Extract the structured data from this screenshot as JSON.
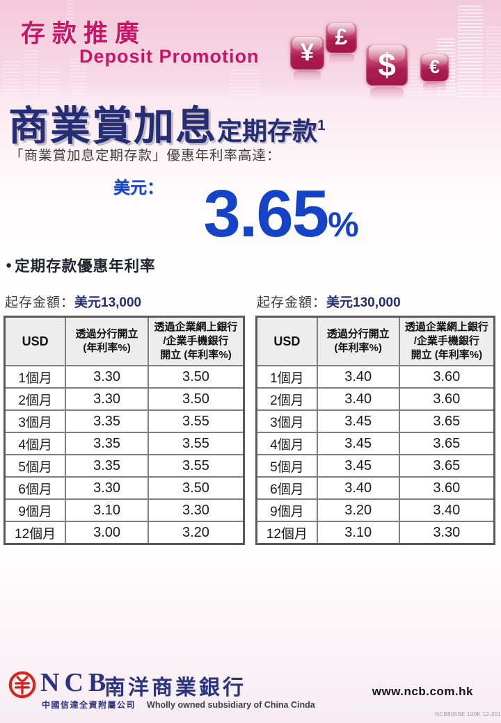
{
  "colors": {
    "magenta": "#cb1464",
    "navy": "#252e73",
    "blue": "#1443c8",
    "text-dark": "#3d3d3d",
    "bullet-dark": "#20242e",
    "table-border": "#7f7f7f",
    "table-border-outer": "#595959",
    "table-header-bg": "#ededed",
    "logo-red": "#d8251f",
    "logo-navy": "#2c3480"
  },
  "header": {
    "title_zh": "存款推廣",
    "title_en": "Deposit Promotion",
    "currency_icons": [
      {
        "name": "yen",
        "symbol": "¥"
      },
      {
        "name": "pound",
        "symbol": "£"
      },
      {
        "name": "dollar",
        "symbol": "$"
      },
      {
        "name": "euro",
        "symbol": "€"
      }
    ]
  },
  "promo": {
    "product_title": "商業賞加息",
    "product_subtitle": "定期存款",
    "footnote_marker": "1",
    "tagline": "「商業賞加息定期存款」優惠年利率高達：",
    "currency_label": "美元：",
    "headline_rate": "3.65",
    "headline_rate_unit": "%",
    "section_bullet": "●",
    "section_title": "定期存款優惠年利率"
  },
  "tables": [
    {
      "caption_prefix": "起存金額：",
      "caption_amount": "美元13,000",
      "headers": [
        "USD",
        "透過分行開立\n(年利率%)",
        "透過企業網上銀行\n/企業手機銀行\n開立 (年利率%)"
      ],
      "rows": [
        [
          "1個月",
          "3.30",
          "3.50"
        ],
        [
          "2個月",
          "3.30",
          "3.50"
        ],
        [
          "3個月",
          "3.35",
          "3.55"
        ],
        [
          "4個月",
          "3.35",
          "3.55"
        ],
        [
          "5個月",
          "3.35",
          "3.55"
        ],
        [
          "6個月",
          "3.30",
          "3.50"
        ],
        [
          "9個月",
          "3.10",
          "3.30"
        ],
        [
          "12個月",
          "3.00",
          "3.20"
        ]
      ]
    },
    {
      "caption_prefix": "起存金額：",
      "caption_amount": "美元130,000",
      "headers": [
        "USD",
        "透過分行開立\n(年利率%)",
        "透過企業網上銀行\n/企業手機銀行\n開立 (年利率%)"
      ],
      "rows": [
        [
          "1個月",
          "3.40",
          "3.60"
        ],
        [
          "2個月",
          "3.40",
          "3.60"
        ],
        [
          "3個月",
          "3.45",
          "3.65"
        ],
        [
          "4個月",
          "3.45",
          "3.65"
        ],
        [
          "5個月",
          "3.45",
          "3.65"
        ],
        [
          "6個月",
          "3.40",
          "3.60"
        ],
        [
          "9個月",
          "3.20",
          "3.40"
        ],
        [
          "12個月",
          "3.10",
          "3.30"
        ]
      ]
    }
  ],
  "footer": {
    "bank_abbr": "NCB",
    "bank_name_zh": "南洋商業銀行",
    "subsidiary_zh": "中國信達全資附屬公司",
    "subsidiary_en": "Wholly owned subsidiary of China Cinda",
    "website": "www.ncb.com.hk",
    "print_code": "NCB805SE 100K 12-2016"
  }
}
